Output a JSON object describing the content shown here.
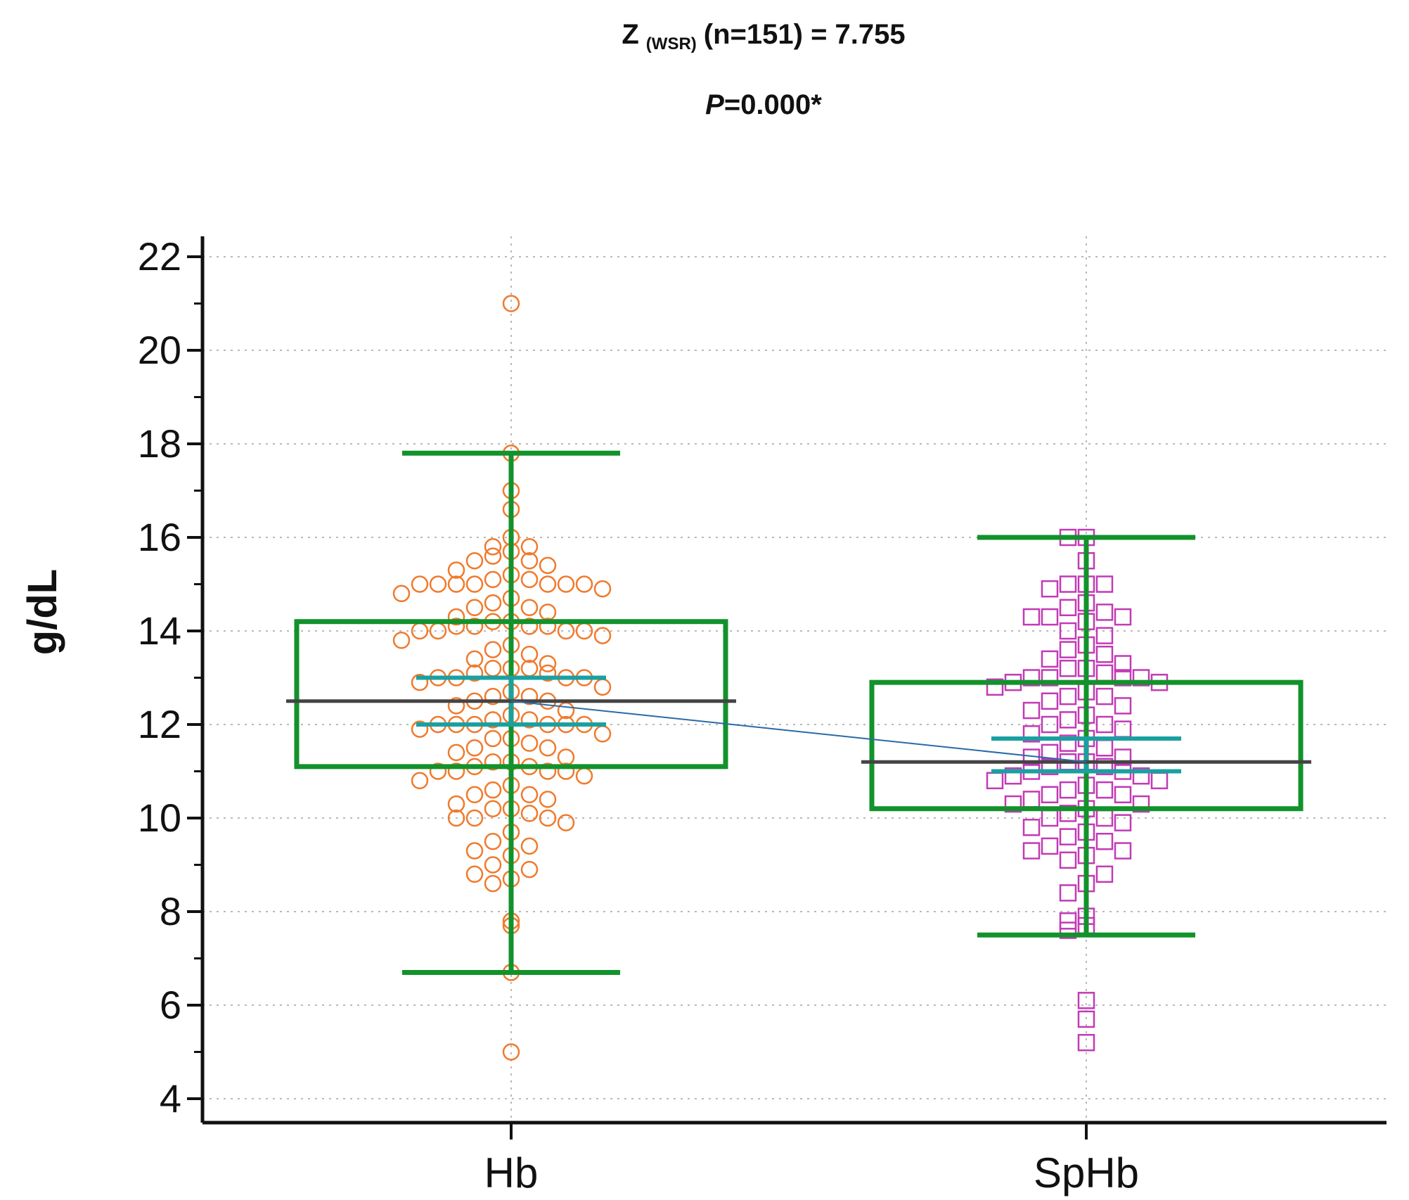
{
  "chart_data": {
    "type": "box",
    "stat_line1_prefix": "Z",
    "stat_line1_sub": "(WSR)",
    "stat_line1_rest": "(n=151) = 7.755",
    "stat_line2_italic": "P",
    "stat_line2_rest": "=0.000*",
    "ylabel": "g/dL",
    "ylim": [
      3.5,
      22.5
    ],
    "yticks": [
      4,
      6,
      8,
      10,
      12,
      14,
      16,
      18,
      20,
      22
    ],
    "grid": true,
    "categories": [
      "Hb",
      "SpHb"
    ],
    "colors": {
      "box": "#12922b",
      "ci": "#1aa0a0",
      "mean": "#444444",
      "connector": "#2a6aa8",
      "hb_points": "#f07a2c",
      "sphb_points": "#c23ab5"
    },
    "series": [
      {
        "name": "Hb",
        "marker": "circle",
        "whisker_low": 6.7,
        "q1": 11.1,
        "mean": 12.5,
        "ci_low": 12.0,
        "ci_high": 13.0,
        "q3": 14.2,
        "whisker_high": 17.8,
        "points": [
          21.0,
          17.8,
          17.0,
          16.6,
          16.0,
          15.8,
          15.8,
          15.7,
          15.6,
          15.5,
          15.5,
          15.4,
          15.3,
          15.2,
          15.1,
          15.1,
          15.0,
          15.0,
          15.0,
          15.0,
          15.0,
          15.0,
          15.0,
          14.9,
          14.8,
          14.7,
          14.6,
          14.5,
          14.5,
          14.4,
          14.3,
          14.2,
          14.2,
          14.1,
          14.1,
          14.1,
          14.1,
          14.0,
          14.0,
          14.0,
          14.0,
          13.9,
          13.8,
          13.7,
          13.6,
          13.5,
          13.4,
          13.3,
          13.2,
          13.2,
          13.2,
          13.1,
          13.1,
          13.0,
          13.0,
          13.0,
          13.0,
          12.9,
          12.8,
          12.7,
          12.6,
          12.6,
          12.5,
          12.5,
          12.4,
          12.3,
          12.2,
          12.1,
          12.1,
          12.0,
          12.0,
          12.0,
          12.0,
          12.0,
          12.0,
          11.9,
          11.8,
          11.7,
          11.7,
          11.6,
          11.5,
          11.5,
          11.4,
          11.3,
          11.2,
          11.2,
          11.1,
          11.1,
          11.0,
          11.0,
          11.0,
          11.0,
          10.9,
          10.8,
          10.7,
          10.6,
          10.5,
          10.5,
          10.4,
          10.3,
          10.2,
          10.2,
          10.1,
          10.0,
          10.0,
          10.0,
          9.9,
          9.7,
          9.5,
          9.4,
          9.3,
          9.2,
          9.0,
          8.9,
          8.8,
          8.7,
          8.6,
          7.8,
          7.7,
          6.7,
          5.0
        ]
      },
      {
        "name": "SpHb",
        "marker": "square",
        "whisker_low": 7.5,
        "q1": 10.2,
        "mean": 11.2,
        "ci_low": 11.0,
        "ci_high": 11.7,
        "q3": 12.9,
        "whisker_high": 16.0,
        "points": [
          16.0,
          16.0,
          15.5,
          15.0,
          15.0,
          15.0,
          14.9,
          14.6,
          14.5,
          14.4,
          14.3,
          14.3,
          14.3,
          14.2,
          14.0,
          13.9,
          13.7,
          13.6,
          13.5,
          13.4,
          13.3,
          13.2,
          13.2,
          13.1,
          13.0,
          13.0,
          13.0,
          13.0,
          12.9,
          12.9,
          12.8,
          12.7,
          12.6,
          12.6,
          12.5,
          12.4,
          12.3,
          12.2,
          12.1,
          12.0,
          12.0,
          11.9,
          11.8,
          11.7,
          11.6,
          11.5,
          11.4,
          11.3,
          11.3,
          11.2,
          11.2,
          11.1,
          11.1,
          11.0,
          11.0,
          10.9,
          10.9,
          10.8,
          10.8,
          10.7,
          10.6,
          10.6,
          10.5,
          10.5,
          10.4,
          10.3,
          10.3,
          10.2,
          10.1,
          10.0,
          10.0,
          9.9,
          9.8,
          9.7,
          9.6,
          9.5,
          9.4,
          9.3,
          9.3,
          9.2,
          9.1,
          8.8,
          8.6,
          8.4,
          7.9,
          7.8,
          7.7,
          7.6,
          6.1,
          5.7,
          5.2
        ]
      }
    ]
  }
}
